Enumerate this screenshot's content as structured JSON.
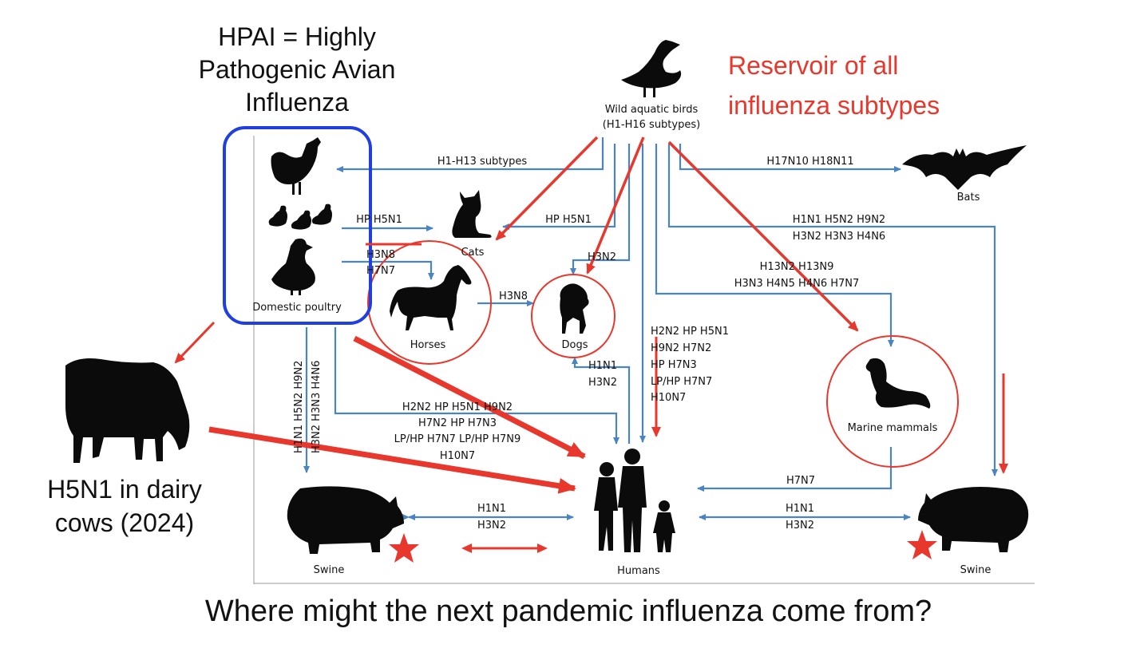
{
  "hpai": {
    "line1": "HPAI = Highly",
    "line2": "Pathogenic Avian",
    "line3": "Influenza"
  },
  "reservoir": {
    "line1": "Reservoir of all",
    "line2": "influenza subtypes"
  },
  "cows": {
    "line1": "H5N1 in dairy",
    "line2": "cows (2024)"
  },
  "question": "Where might the next pandemic influenza come from?",
  "nodes": {
    "wild_birds_1": "Wild aquatic birds",
    "wild_birds_2": "(H1-H16 subtypes)",
    "bats": "Bats",
    "cats": "Cats",
    "domestic_poultry": "Domestic poultry",
    "horses": "Horses",
    "dogs": "Dogs",
    "marine_mammals": "Marine mammals",
    "swine_left": "Swine",
    "humans": "Humans",
    "swine_right": "Swine"
  },
  "labels": {
    "h1_h13": "H1-H13 subtypes",
    "h17_h18": "H17N10  H18N11",
    "poultry_cats": "HP H5N1",
    "birds_cats": "HP H5N1",
    "bird_swine_r1": "H1N1  H5N2  H9N2",
    "bird_swine_r2": "H3N2  H3N3  H4N6",
    "bird_marine_1": "H13N2  H13N9",
    "bird_marine_2": "H3N3  H4N5  H4N6  H7N7",
    "bird_dogs": "H3N2",
    "poultry_horses_1": "H3N8",
    "poultry_horses_2": "H7N7",
    "horses_dogs": "H3N8",
    "humans_dogs_1": "H1N1",
    "humans_dogs_2": "H3N2",
    "bird_humans_1": "H2N2  HP H5N1",
    "bird_humans_2": "H9N2  H7N2",
    "bird_humans_3": "HP H7N3",
    "bird_humans_4": "LP/HP H7N7",
    "bird_humans_5": "H10N7",
    "poultry_humans_1": "H2N2  HP H5N1  H9N2",
    "poultry_humans_2": "H7N2  HP H7N3",
    "poultry_humans_3": "LP/HP H7N7  LP/HP H7N9",
    "poultry_humans_4": "H10N7",
    "poultry_swine_1": "H1N1  H5N2  H9N2",
    "poultry_swine_2": "H3N2  H3N3  H4N6",
    "marine_humans": "H7N7",
    "swine_humans_l1": "H1N1",
    "swine_humans_l2": "H3N2",
    "swine_humans_r1": "H1N1",
    "swine_humans_r2": "H3N2"
  },
  "colors": {
    "red": "#e8372c",
    "blue": "#4a84c2",
    "box": "#1f3fe0"
  }
}
